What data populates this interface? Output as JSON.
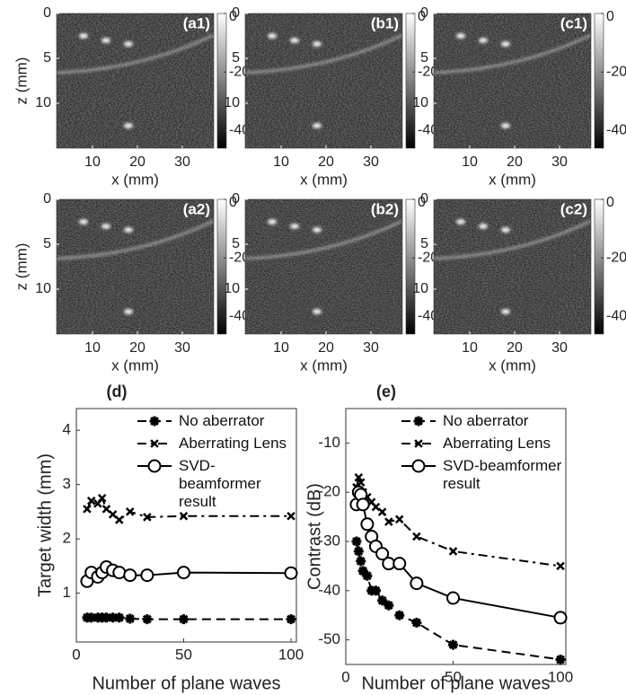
{
  "chart_data": [
    {
      "type": "image",
      "label": "(a1)",
      "xlabel": "x (mm)",
      "ylabel": "z (mm)",
      "xlim": [
        2,
        37
      ],
      "xticks": [
        10,
        20,
        30
      ],
      "ylim": [
        0,
        15
      ],
      "yticks": [
        0,
        5,
        10
      ],
      "clim": [
        -46,
        0
      ],
      "cticks": [
        0,
        -20,
        -40
      ],
      "colormap": "gray"
    },
    {
      "type": "image",
      "label": "(b1)",
      "xlabel": "x (mm)",
      "xlim": [
        2,
        37
      ],
      "xticks": [
        10,
        20,
        30
      ],
      "ylim": [
        0,
        15
      ],
      "yticks": [
        0,
        5,
        10
      ],
      "clim": [
        -46,
        0
      ],
      "cticks": [
        0,
        -20,
        -40
      ],
      "colormap": "gray"
    },
    {
      "type": "image",
      "label": "(c1)",
      "xlabel": "x (mm)",
      "xlim": [
        2,
        37
      ],
      "xticks": [
        10,
        20,
        30
      ],
      "ylim": [
        0,
        15
      ],
      "yticks": [
        0,
        5,
        10
      ],
      "clim": [
        -46,
        0
      ],
      "cticks": [
        0,
        -20,
        -40
      ],
      "colormap": "gray"
    },
    {
      "type": "image",
      "label": "(a2)",
      "xlabel": "x (mm)",
      "ylabel": "z (mm)",
      "xlim": [
        2,
        37
      ],
      "xticks": [
        10,
        20,
        30
      ],
      "ylim": [
        0,
        15
      ],
      "yticks": [
        0,
        5,
        10
      ],
      "clim": [
        -46,
        0
      ],
      "cticks": [
        0,
        -20,
        -40
      ],
      "colormap": "gray"
    },
    {
      "type": "image",
      "label": "(b2)",
      "xlabel": "x (mm)",
      "xlim": [
        2,
        37
      ],
      "xticks": [
        10,
        20,
        30
      ],
      "ylim": [
        0,
        15
      ],
      "yticks": [
        0,
        5,
        10
      ],
      "clim": [
        -46,
        0
      ],
      "cticks": [
        0,
        -20,
        -40
      ],
      "colormap": "gray"
    },
    {
      "type": "image",
      "label": "(c2)",
      "xlabel": "x (mm)",
      "xlim": [
        2,
        37
      ],
      "xticks": [
        10,
        20,
        30
      ],
      "ylim": [
        0,
        15
      ],
      "yticks": [
        0,
        5,
        10
      ],
      "clim": [
        -46,
        0
      ],
      "cticks": [
        0,
        -20,
        -40
      ],
      "colormap": "gray"
    },
    {
      "type": "line",
      "title": "(d)",
      "xlabel": "Number of plane waves",
      "ylabel": "Target width (mm)",
      "x": [
        5,
        7,
        10,
        12,
        14,
        17,
        20,
        25,
        33,
        50,
        100
      ],
      "xlim": [
        0,
        102.5
      ],
      "xticks": [
        0,
        50,
        100
      ],
      "ylim": [
        0.1,
        4.4
      ],
      "yticks": [
        1,
        2,
        3,
        4
      ],
      "series": [
        {
          "name": "No aberrator",
          "color": "#000000",
          "marker": "asterisk",
          "linestyle": "dashed",
          "values": [
            0.55,
            0.55,
            0.55,
            0.55,
            0.55,
            0.55,
            0.55,
            0.53,
            0.52,
            0.52,
            0.52
          ]
        },
        {
          "name": "Aberrating Lens",
          "color": "#000000",
          "marker": "x",
          "linestyle": "dashdot",
          "values": [
            2.55,
            2.7,
            2.65,
            2.75,
            2.55,
            2.45,
            2.35,
            2.5,
            2.4,
            2.42,
            2.42
          ]
        },
        {
          "name": "SVD-beamformer result",
          "color": "#000000",
          "marker": "circle",
          "linestyle": "solid",
          "values": [
            1.22,
            1.38,
            1.3,
            1.38,
            1.48,
            1.42,
            1.38,
            1.33,
            1.33,
            1.38,
            1.37
          ]
        }
      ],
      "legend": "upper-right"
    },
    {
      "type": "line",
      "title": "(e)",
      "xlabel": "Number of plane waves",
      "ylabel": "Contrast (dB)",
      "x": [
        5,
        6,
        7,
        8,
        10,
        12,
        14,
        17,
        20,
        25,
        33,
        50,
        100
      ],
      "xlim": [
        0,
        102.5
      ],
      "xticks": [
        0,
        50,
        100
      ],
      "ylim": [
        -55,
        -3
      ],
      "yticks": [
        -50,
        -40,
        -30,
        -20,
        -10
      ],
      "series": [
        {
          "name": "No aberrator",
          "color": "#000000",
          "marker": "asterisk",
          "linestyle": "dashed",
          "values": [
            -30,
            -32,
            -34,
            -36,
            -37,
            -40,
            -40,
            -42,
            -43,
            -45,
            -46.5,
            -51,
            -54
          ]
        },
        {
          "name": "Aberrating Lens",
          "color": "#000000",
          "marker": "x",
          "linestyle": "dashdot",
          "values": [
            -19,
            -17,
            -18,
            -20,
            -21,
            -22,
            -23,
            -24,
            -26,
            -25.5,
            -29,
            -32,
            -35
          ]
        },
        {
          "name": "SVD-beamformer result",
          "color": "#000000",
          "marker": "circle",
          "linestyle": "solid",
          "values": [
            -22.5,
            -20,
            -20.5,
            -22.5,
            -26.5,
            -29,
            -31,
            -32.5,
            -34.5,
            -34.5,
            -38.5,
            -41.5,
            -45.5
          ]
        }
      ],
      "legend": "upper-right"
    }
  ]
}
